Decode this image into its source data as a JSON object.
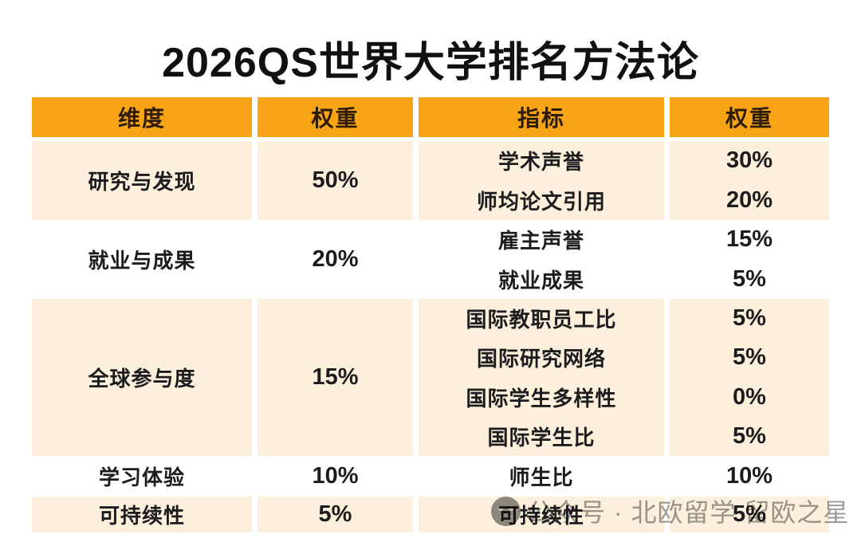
{
  "title": "2026QS世界大学排名方法论",
  "table": {
    "headers": [
      "维度",
      "权重",
      "指标",
      "权重"
    ],
    "sections": [
      {
        "dimension": "研究与发现",
        "weight": "50%",
        "indicators": [
          {
            "name": "学术声誉",
            "weight": "30%"
          },
          {
            "name": "师均论文引用",
            "weight": "20%"
          }
        ]
      },
      {
        "dimension": "就业与成果",
        "weight": "20%",
        "indicators": [
          {
            "name": "雇主声誉",
            "weight": "15%"
          },
          {
            "name": "就业成果",
            "weight": "5%"
          }
        ]
      },
      {
        "dimension": "全球参与度",
        "weight": "15%",
        "indicators": [
          {
            "name": "国际教职员工比",
            "weight": "5%"
          },
          {
            "name": "国际研究网络",
            "weight": "5%"
          },
          {
            "name": "国际学生多样性",
            "weight": "0%"
          },
          {
            "name": "国际学生比",
            "weight": "5%"
          }
        ]
      },
      {
        "dimension": "学习体验",
        "weight": "10%",
        "indicators": [
          {
            "name": "师生比",
            "weight": "10%"
          }
        ]
      },
      {
        "dimension": "可持续性",
        "weight": "5%",
        "indicators": [
          {
            "name": "可持续性",
            "weight": "5%"
          }
        ]
      }
    ]
  },
  "watermark": {
    "text": "公众号 · 北欧留学 留欧之星",
    "icon": "official-account-face-icon"
  },
  "colors": {
    "header_bg": "#F7A516",
    "section_cream": "#FCF0DC",
    "header_text": "#2E1C05",
    "body_text": "#1C1C1E",
    "watermark_gray": "#9B9B9B"
  }
}
